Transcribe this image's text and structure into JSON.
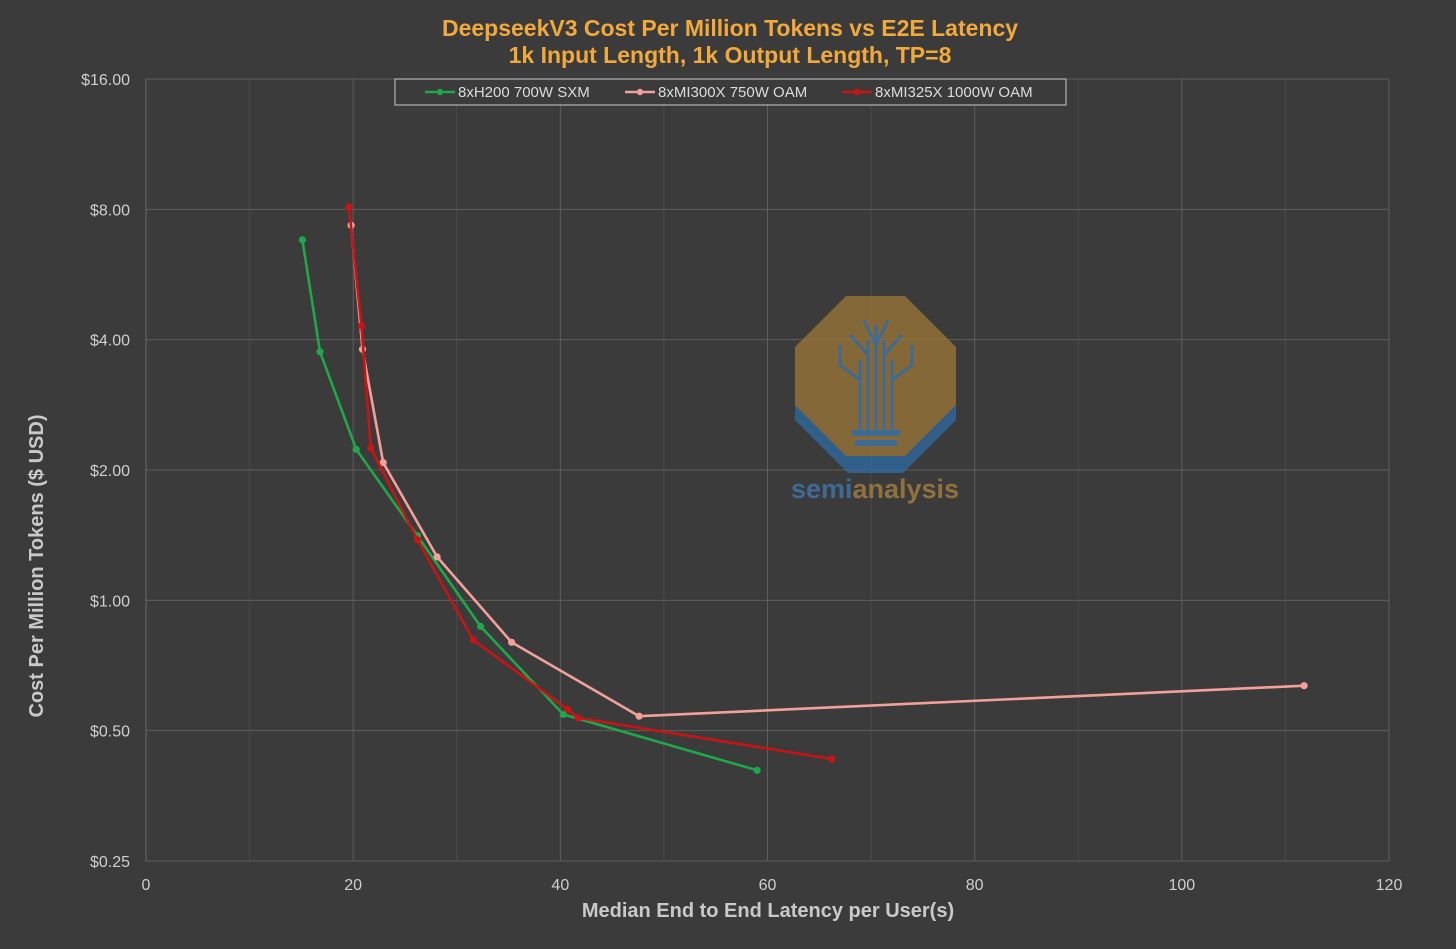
{
  "colors": {
    "background": "#3b3b3b",
    "grid": "#5e5e5e",
    "title": "#f2a93b",
    "h200": "#1ea84a",
    "mi300x": "#f2a09a",
    "mi325x": "#c81414"
  },
  "watermark": {
    "part1": "semi",
    "part2": "analysis"
  },
  "chart_data": {
    "type": "line",
    "title": "DeepseekV3 Cost Per Million Tokens vs E2E Latency",
    "subtitle": "1k Input Length, 1k Output Length, TP=8",
    "xlabel": "Median End to End Latency per User(s)",
    "ylabel": "Cost Per Million Tokens ($ USD)",
    "xlim": [
      0,
      120
    ],
    "ylim": [
      0.25,
      16
    ],
    "y_scale": "log2",
    "x_ticks": [
      "0",
      "20",
      "40",
      "60",
      "80",
      "100",
      "120"
    ],
    "x_tick_values": [
      0,
      20,
      40,
      60,
      80,
      100,
      120
    ],
    "y_ticks": [
      "$0.25",
      "$0.50",
      "$1.00",
      "$2.00",
      "$4.00",
      "$8.00",
      "$16.00"
    ],
    "y_tick_values": [
      0.25,
      0.5,
      1,
      2,
      4,
      8,
      16
    ],
    "grid": true,
    "legend_position": "top-center",
    "series": [
      {
        "name": "8xH200 700W SXM",
        "color_key": "h200",
        "x": [
          15.1,
          16.8,
          20.3,
          26.2,
          32.3,
          40.3,
          59.0
        ],
        "y": [
          6.8,
          3.75,
          2.23,
          1.41,
          0.87,
          0.545,
          0.405
        ]
      },
      {
        "name": "8xMI300X 750W OAM",
        "color_key": "mi300x",
        "x": [
          19.8,
          20.9,
          22.9,
          28.1,
          35.3,
          47.6,
          111.8
        ],
        "y": [
          7.35,
          3.8,
          2.08,
          1.26,
          0.8,
          0.54,
          0.635
        ]
      },
      {
        "name": "8xMI325X 1000W OAM",
        "color_key": "mi325x",
        "x": [
          19.6,
          20.8,
          21.7,
          26.2,
          31.6,
          40.7,
          41.7,
          66.2
        ],
        "y": [
          8.1,
          4.3,
          2.25,
          1.38,
          0.81,
          0.56,
          0.535,
          0.43
        ]
      }
    ]
  }
}
